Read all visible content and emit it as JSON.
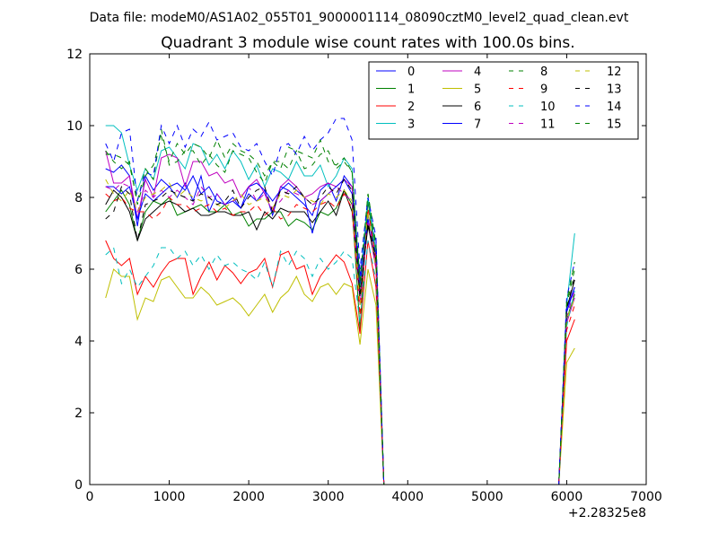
{
  "header": {
    "data_file": "Data file: modeM0/AS1A02_055T01_9000001114_08090cztM0_level2_quad_clean.evt"
  },
  "chart_data": {
    "type": "line",
    "title": "Quadrant 3 module wise count rates with 100.0s bins.",
    "xlabel": "",
    "ylabel": "",
    "x_offset_label": "+2.28325e8",
    "xlim": [
      0,
      7000
    ],
    "ylim": [
      0,
      12
    ],
    "x_ticks": [
      0,
      1000,
      2000,
      3000,
      4000,
      5000,
      6000,
      7000
    ],
    "y_ticks": [
      0,
      2,
      4,
      6,
      8,
      10,
      12
    ],
    "legend_position": "top-right",
    "x": [
      200,
      300,
      400,
      500,
      600,
      700,
      800,
      900,
      1000,
      1100,
      1200,
      1300,
      1400,
      1500,
      1600,
      1700,
      1800,
      1900,
      2000,
      2100,
      2200,
      2300,
      2400,
      2500,
      2600,
      2700,
      2800,
      2900,
      3000,
      3100,
      3200,
      3300,
      3400,
      3500,
      3600,
      3700,
      5900,
      6000,
      6100
    ],
    "series": [
      {
        "name": "0",
        "color": "#0000ff",
        "dash": "solid",
        "values": [
          8.8,
          8.7,
          8.9,
          8.6,
          7.2,
          8.6,
          8.2,
          8.5,
          8.3,
          8.0,
          8.4,
          7.9,
          8.6,
          7.6,
          8.1,
          7.8,
          8.0,
          7.7,
          8.1,
          7.9,
          8.2,
          7.5,
          8.3,
          8.2,
          8.0,
          7.8,
          7.5,
          8.2,
          8.4,
          7.9,
          8.6,
          8.3,
          5.8,
          7.5,
          6.8,
          0,
          0,
          4.8,
          5.5
        ]
      },
      {
        "name": "1",
        "color": "#008000",
        "dash": "solid",
        "values": [
          7.6,
          7.9,
          8.2,
          7.8,
          6.8,
          7.6,
          7.9,
          7.8,
          8.0,
          7.5,
          7.6,
          7.7,
          7.8,
          7.6,
          7.6,
          7.8,
          7.5,
          7.6,
          7.2,
          7.4,
          7.4,
          7.6,
          7.6,
          7.2,
          7.4,
          7.3,
          7.1,
          7.6,
          7.5,
          7.7,
          8.2,
          7.8,
          4.3,
          7.9,
          6.3,
          0,
          0,
          4.6,
          5.3
        ]
      },
      {
        "name": "2",
        "color": "#ff0000",
        "dash": "solid",
        "values": [
          6.8,
          6.3,
          6.1,
          6.3,
          5.3,
          5.8,
          5.5,
          5.9,
          6.2,
          6.3,
          6.3,
          5.3,
          5.8,
          6.2,
          5.7,
          6.1,
          5.9,
          5.6,
          5.9,
          6.0,
          6.3,
          5.5,
          6.4,
          6.5,
          6.0,
          6.1,
          5.3,
          5.8,
          6.1,
          6.4,
          6.2,
          5.6,
          4.2,
          6.8,
          5.5,
          0,
          0,
          4.0,
          4.6
        ]
      },
      {
        "name": "3",
        "color": "#00bfbf",
        "dash": "solid",
        "values": [
          10.0,
          10.0,
          9.8,
          8.9,
          8.2,
          8.8,
          8.5,
          9.3,
          9.4,
          9.1,
          8.8,
          9.5,
          9.4,
          8.9,
          9.2,
          8.8,
          9.3,
          9.0,
          8.5,
          8.9,
          8.3,
          8.8,
          8.7,
          8.5,
          9.0,
          8.6,
          8.6,
          8.9,
          8.3,
          8.6,
          9.1,
          8.8,
          5.5,
          8.0,
          6.5,
          0,
          0,
          5.0,
          7.0
        ]
      },
      {
        "name": "4",
        "color": "#bf00bf",
        "dash": "solid",
        "values": [
          9.3,
          8.4,
          8.4,
          8.6,
          7.4,
          8.5,
          8.0,
          9.1,
          9.2,
          9.1,
          8.3,
          9.0,
          9.0,
          8.6,
          8.7,
          8.4,
          8.5,
          8.0,
          8.3,
          8.5,
          8.1,
          7.6,
          8.3,
          8.5,
          8.3,
          8.0,
          8.1,
          8.3,
          8.4,
          8.3,
          8.5,
          8.3,
          5.0,
          7.3,
          6.0,
          0,
          0,
          4.5,
          5.2
        ]
      },
      {
        "name": "5",
        "color": "#bfbf00",
        "dash": "solid",
        "values": [
          5.2,
          6.0,
          5.8,
          5.8,
          4.6,
          5.2,
          5.1,
          5.7,
          5.8,
          5.5,
          5.2,
          5.2,
          5.5,
          5.3,
          5.0,
          5.1,
          5.2,
          5.0,
          4.7,
          5.0,
          5.3,
          4.8,
          5.2,
          5.4,
          5.8,
          5.3,
          5.1,
          5.5,
          5.6,
          5.3,
          5.6,
          5.5,
          3.9,
          6.0,
          5.0,
          0,
          0,
          3.4,
          3.8
        ]
      },
      {
        "name": "6",
        "color": "#000000",
        "dash": "solid",
        "values": [
          7.8,
          8.2,
          8.0,
          7.6,
          6.8,
          7.4,
          7.6,
          7.8,
          7.9,
          7.8,
          7.6,
          7.7,
          7.5,
          7.5,
          7.6,
          7.6,
          7.5,
          7.5,
          7.6,
          7.1,
          7.6,
          7.4,
          7.7,
          7.6,
          7.6,
          7.6,
          7.3,
          7.6,
          7.9,
          7.5,
          8.2,
          7.6,
          5.3,
          7.2,
          6.2,
          0,
          0,
          4.9,
          5.7
        ]
      },
      {
        "name": "7",
        "color": "#0000ff",
        "dash": "solid",
        "values": [
          8.3,
          8.3,
          8.1,
          8.3,
          7.4,
          8.1,
          7.9,
          8.1,
          8.3,
          8.4,
          8.2,
          8.6,
          8.1,
          8.3,
          7.9,
          7.8,
          7.9,
          7.7,
          8.3,
          8.4,
          8.2,
          7.9,
          8.2,
          8.4,
          8.2,
          8.0,
          7.0,
          7.9,
          8.1,
          8.3,
          8.5,
          8.1,
          5.6,
          7.4,
          6.4,
          0,
          0,
          4.9,
          5.5
        ]
      },
      {
        "name": "8",
        "color": "#008000",
        "dash": "dashed",
        "values": [
          9.2,
          9.2,
          9.1,
          8.9,
          7.9,
          8.8,
          8.5,
          9.9,
          8.9,
          9.0,
          9.3,
          9.3,
          8.9,
          9.2,
          8.9,
          8.7,
          9.3,
          9.2,
          9.1,
          8.7,
          8.4,
          9.0,
          9.0,
          8.8,
          9.3,
          8.8,
          8.9,
          9.2,
          9.3,
          8.8,
          9.0,
          8.7,
          5.7,
          8.1,
          6.7,
          0,
          0,
          5.0,
          6.0
        ]
      },
      {
        "name": "9",
        "color": "#ff0000",
        "dash": "dashed",
        "values": [
          8.1,
          7.9,
          8.0,
          7.7,
          7.6,
          7.6,
          7.4,
          7.6,
          8.0,
          7.8,
          7.8,
          7.6,
          7.7,
          7.8,
          7.6,
          7.7,
          7.5,
          7.6,
          7.6,
          7.8,
          7.5,
          7.7,
          7.4,
          7.5,
          7.8,
          7.7,
          7.6,
          7.8,
          7.9,
          7.7,
          8.1,
          7.7,
          4.7,
          7.7,
          6.3,
          0,
          0,
          4.3,
          5.0
        ]
      },
      {
        "name": "10",
        "color": "#00bfbf",
        "dash": "dashed",
        "values": [
          6.4,
          6.6,
          5.6,
          6.0,
          5.5,
          5.8,
          6.1,
          6.6,
          6.6,
          6.3,
          6.5,
          6.1,
          6.4,
          6.0,
          6.4,
          6.1,
          6.2,
          6.0,
          5.9,
          5.7,
          6.2,
          5.5,
          6.5,
          6.1,
          6.5,
          6.3,
          5.8,
          6.3,
          6.0,
          6.2,
          6.5,
          6.3,
          4.5,
          6.8,
          5.7,
          0,
          0,
          4.4,
          5.4
        ]
      },
      {
        "name": "11",
        "color": "#bf00bf",
        "dash": "dashed",
        "values": [
          8.3,
          8.2,
          8.4,
          8.3,
          7.6,
          8.2,
          8.0,
          8.2,
          8.0,
          8.2,
          8.0,
          7.8,
          8.3,
          8.0,
          8.1,
          7.8,
          7.9,
          8.0,
          8.3,
          7.9,
          8.1,
          7.7,
          7.9,
          8.2,
          8.1,
          8.0,
          7.8,
          7.9,
          8.1,
          8.3,
          8.1,
          7.9,
          5.1,
          7.5,
          6.1,
          0,
          0,
          4.7,
          5.4
        ]
      },
      {
        "name": "12",
        "color": "#bfbf00",
        "dash": "dashed",
        "values": [
          8.5,
          8.1,
          7.9,
          8.2,
          7.6,
          8.0,
          8.1,
          8.2,
          8.4,
          8.0,
          8.2,
          8.0,
          7.9,
          8.0,
          7.8,
          7.7,
          7.9,
          8.1,
          7.8,
          7.9,
          8.0,
          7.7,
          8.1,
          8.0,
          8.2,
          8.0,
          7.9,
          7.8,
          8.1,
          8.0,
          8.2,
          7.9,
          5.0,
          7.6,
          6.0,
          0,
          0,
          4.6,
          5.2
        ]
      },
      {
        "name": "13",
        "color": "#000000",
        "dash": "dashed",
        "values": [
          7.4,
          7.6,
          8.3,
          8.1,
          6.8,
          7.8,
          7.9,
          8.0,
          8.2,
          8.1,
          8.0,
          7.9,
          8.1,
          8.0,
          7.8,
          7.9,
          8.2,
          7.7,
          8.0,
          8.2,
          8.3,
          7.6,
          8.2,
          8.1,
          8.3,
          8.0,
          7.8,
          8.0,
          8.3,
          8.1,
          8.5,
          8.2,
          5.2,
          7.3,
          6.3,
          0,
          0,
          4.9,
          5.8
        ]
      },
      {
        "name": "14",
        "color": "#0000ff",
        "dash": "dashed",
        "values": [
          9.5,
          9.0,
          9.8,
          9.9,
          7.9,
          8.7,
          8.6,
          10.0,
          9.5,
          10.0,
          9.4,
          9.9,
          9.7,
          10.1,
          9.6,
          9.7,
          9.8,
          9.4,
          9.3,
          9.5,
          9.0,
          8.6,
          9.4,
          9.5,
          9.2,
          9.7,
          9.3,
          9.6,
          9.8,
          10.2,
          10.2,
          9.6,
          6.0,
          8.0,
          6.9,
          0,
          0,
          5.2,
          6.2
        ]
      },
      {
        "name": "15",
        "color": "#008000",
        "dash": "dashed",
        "values": [
          9.3,
          9.0,
          8.8,
          9.0,
          7.8,
          8.6,
          8.9,
          9.7,
          9.0,
          9.5,
          9.2,
          9.5,
          9.4,
          9.1,
          9.6,
          9.1,
          9.5,
          9.3,
          9.2,
          9.0,
          8.6,
          9.0,
          8.8,
          9.4,
          9.3,
          9.2,
          9.1,
          9.6,
          9.0,
          8.9,
          9.1,
          8.7,
          5.5,
          8.1,
          6.6,
          0,
          0,
          5.1,
          6.2
        ]
      }
    ]
  }
}
